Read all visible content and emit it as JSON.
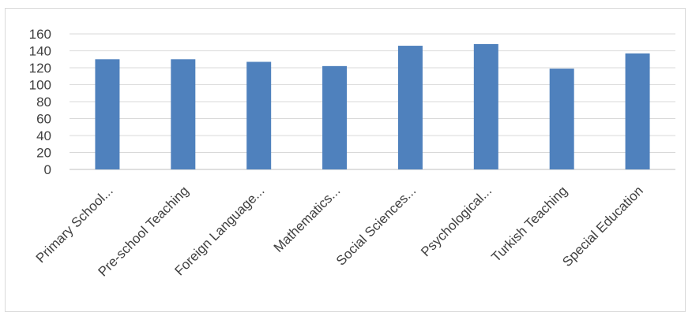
{
  "chart_data": {
    "type": "bar",
    "categories": [
      "Primary School...",
      "Pre-school Teaching",
      "Foreign Language...",
      "Mathematics...",
      "Social Sciences...",
      "Psychological...",
      "Turkish Teaching",
      "Special Education"
    ],
    "values": [
      130,
      130,
      127,
      122,
      146,
      148,
      119,
      137
    ],
    "yticks": [
      "0",
      "20",
      "40",
      "60",
      "80",
      "100",
      "120",
      "140",
      "160"
    ],
    "ylim": [
      0,
      160
    ],
    "grid": true,
    "bar_color": "#4f81bd",
    "grid_color": "#d9d9d9",
    "axis_color": "#bfbfbf",
    "title": "",
    "xlabel": "",
    "ylabel": ""
  }
}
